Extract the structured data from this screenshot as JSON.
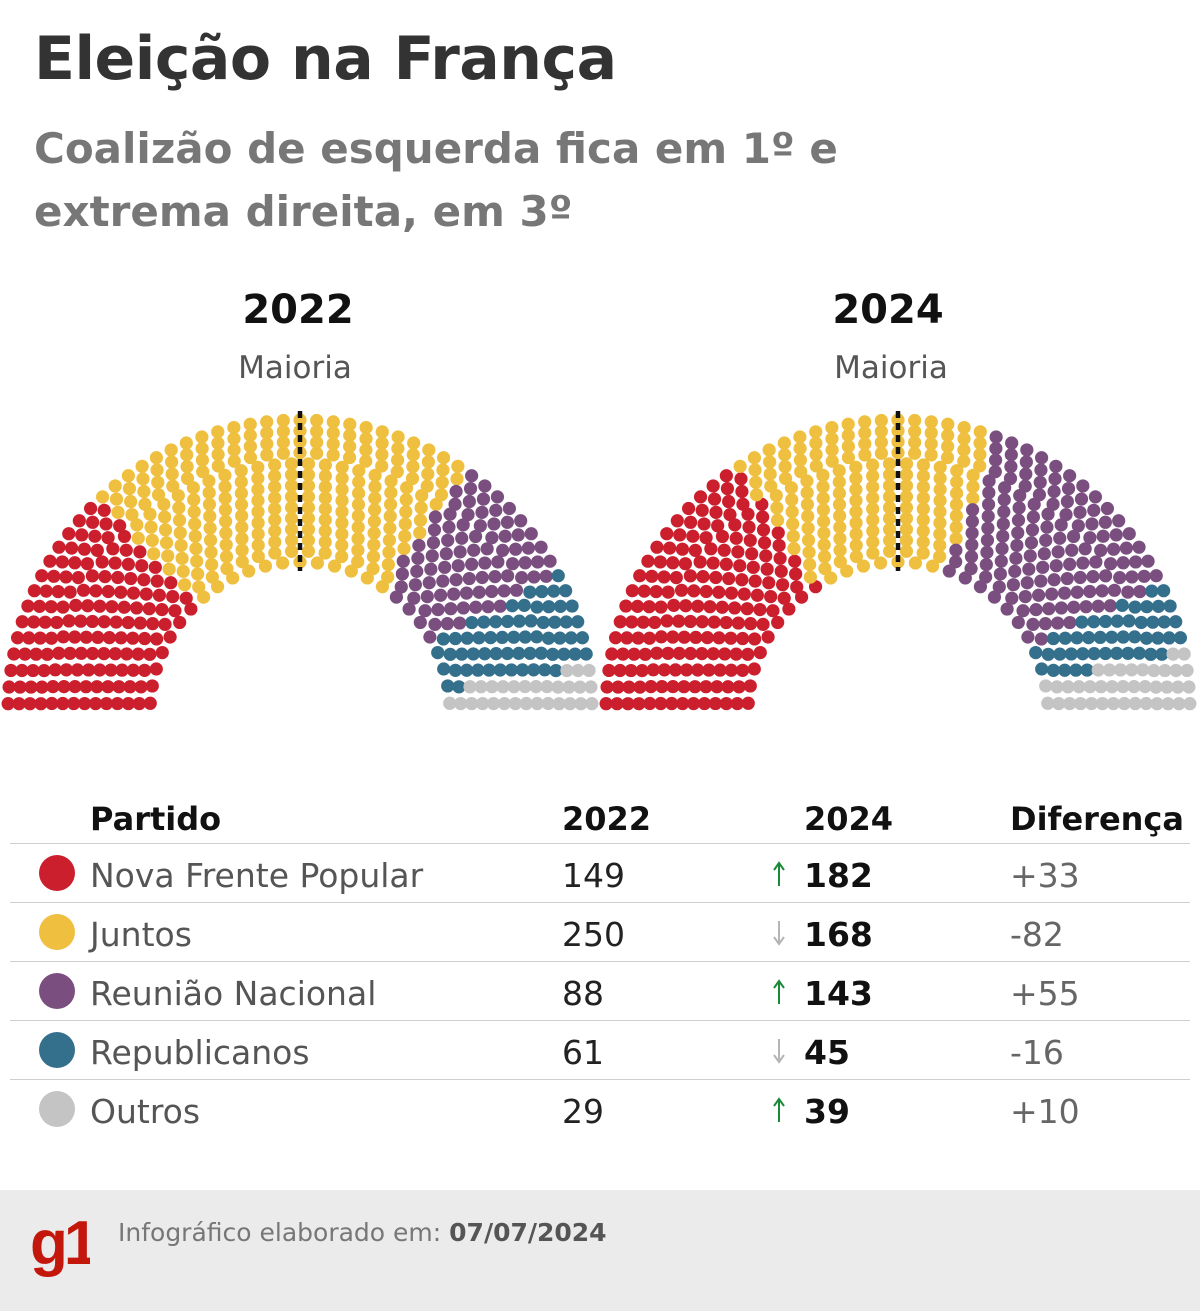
{
  "header": {
    "title": "Eleição na França",
    "subtitle": "Coalizão de esquerda fica em 1º e extrema direita, em 3º"
  },
  "chart_data": {
    "type": "hemicycle",
    "majority_label": "Maioria",
    "total_seats": 577,
    "parties": [
      {
        "name": "Nova Frente Popular",
        "color": "#cc1f2d"
      },
      {
        "name": "Juntos",
        "color": "#efbf3f"
      },
      {
        "name": "Reunião Nacional",
        "color": "#7a4f80"
      },
      {
        "name": "Republicanos",
        "color": "#346f8c"
      },
      {
        "name": "Outros",
        "color": "#c4c4c4"
      }
    ],
    "series": [
      {
        "name": "2022",
        "values": [
          149,
          250,
          88,
          61,
          29
        ]
      },
      {
        "name": "2024",
        "values": [
          182,
          168,
          143,
          45,
          39
        ]
      }
    ]
  },
  "table": {
    "headers": {
      "party": "Partido",
      "y2022": "2022",
      "y2024": "2024",
      "diff": "Diferença"
    },
    "rows": [
      {
        "party": "Nova Frente Popular",
        "y2022": "149",
        "y2024": "182",
        "diff": "+33",
        "trend": "up"
      },
      {
        "party": "Juntos",
        "y2022": "250",
        "y2024": "168",
        "diff": "-82",
        "trend": "down"
      },
      {
        "party": "Reunião Nacional",
        "y2022": "88",
        "y2024": "143",
        "diff": "+55",
        "trend": "up"
      },
      {
        "party": "Republicanos",
        "y2022": "61",
        "y2024": "45",
        "diff": "-16",
        "trend": "down"
      },
      {
        "party": "Outros",
        "y2022": "29",
        "y2024": "39",
        "diff": "+10",
        "trend": "up"
      }
    ]
  },
  "colors": {
    "up": "#1a8a3a",
    "down": "#b5b5b5",
    "logo": "#c4170c"
  },
  "footer": {
    "logo_text": "g1",
    "label": "Infográfico elaborado em:",
    "date": "07/07/2024"
  }
}
